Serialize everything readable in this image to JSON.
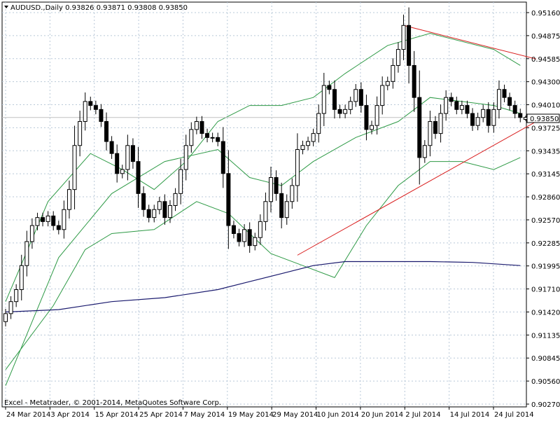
{
  "header": {
    "symbol_line": "AUDUSD.,Daily  0.93826 0.93871 0.93808 0.93850",
    "copyright": "Excel - Metatrader, © 2001-2014, MetaQuotes Software Corp."
  },
  "chart_data": {
    "type": "candlestick",
    "symbol": "AUDUSD.",
    "timeframe": "Daily",
    "last_ohlc": {
      "open": 0.93826,
      "high": 0.93871,
      "low": 0.93808,
      "close": 0.9385
    },
    "current_price_label": "0.93850",
    "ylim": [
      0.9027,
      0.9516
    ],
    "grid": true,
    "y_ticks": [
      "0.95160",
      "0.94875",
      "0.94585",
      "0.94300",
      "0.94010",
      "0.93725",
      "0.93435",
      "0.93145",
      "0.92860",
      "0.92570",
      "0.92285",
      "0.91995",
      "0.91710",
      "0.91420",
      "0.91135",
      "0.90845",
      "0.90560",
      "0.90270"
    ],
    "x_ticks": [
      "24 Mar 2014",
      "3 Apr 2014",
      "15 Apr 2014",
      "25 Apr 2014",
      "7 May 2014",
      "19 May 2014",
      "29 May 2014",
      "10 Jun 2014",
      "20 Jun 2014",
      "2 Jul 2014",
      "14 Jul 2014",
      "24 Jul 2014"
    ],
    "closes": [
      0.914,
      0.9155,
      0.917,
      0.92,
      0.923,
      0.925,
      0.926,
      0.9255,
      0.9262,
      0.925,
      0.9245,
      0.927,
      0.9295,
      0.935,
      0.938,
      0.9405,
      0.94,
      0.9395,
      0.938,
      0.9355,
      0.934,
      0.9315,
      0.932,
      0.935,
      0.933,
      0.929,
      0.927,
      0.926,
      0.927,
      0.928,
      0.926,
      0.9275,
      0.929,
      0.932,
      0.935,
      0.937,
      0.938,
      0.9365,
      0.936,
      0.936,
      0.9355,
      0.9315,
      0.925,
      0.924,
      0.923,
      0.9245,
      0.9225,
      0.9235,
      0.9255,
      0.928,
      0.931,
      0.929,
      0.926,
      0.928,
      0.93,
      0.9345,
      0.935,
      0.9355,
      0.9365,
      0.939,
      0.9425,
      0.942,
      0.9395,
      0.939,
      0.9395,
      0.9405,
      0.942,
      0.94,
      0.937,
      0.9375,
      0.94,
      0.9425,
      0.943,
      0.945,
      0.947,
      0.95,
      0.945,
      0.941,
      0.9335,
      0.935,
      0.938,
      0.9365,
      0.939,
      0.941,
      0.9405,
      0.9395,
      0.94,
      0.939,
      0.9375,
      0.9385,
      0.9395,
      0.9375,
      0.9395,
      0.942,
      0.941,
      0.94,
      0.939,
      0.9385
    ],
    "indicators": {
      "bollinger_upper": [
        [
          0,
          0.9155
        ],
        [
          8,
          0.928
        ],
        [
          16,
          0.934
        ],
        [
          22,
          0.932
        ],
        [
          28,
          0.9295
        ],
        [
          34,
          0.933
        ],
        [
          40,
          0.938
        ],
        [
          46,
          0.94
        ],
        [
          52,
          0.94
        ],
        [
          58,
          0.941
        ],
        [
          64,
          0.944
        ],
        [
          72,
          0.9475
        ],
        [
          80,
          0.949
        ],
        [
          86,
          0.948
        ],
        [
          92,
          0.947
        ],
        [
          97,
          0.945
        ]
      ],
      "bollinger_middle": [
        [
          0,
          0.905
        ],
        [
          10,
          0.921
        ],
        [
          20,
          0.929
        ],
        [
          30,
          0.933
        ],
        [
          40,
          0.9345
        ],
        [
          46,
          0.931
        ],
        [
          52,
          0.93
        ],
        [
          58,
          0.933
        ],
        [
          66,
          0.936
        ],
        [
          74,
          0.938
        ],
        [
          80,
          0.941
        ],
        [
          86,
          0.9405
        ],
        [
          92,
          0.94
        ],
        [
          97,
          0.939
        ]
      ],
      "bollinger_lower": [
        [
          0,
          0.907
        ],
        [
          9,
          0.915
        ],
        [
          15,
          0.922
        ],
        [
          20,
          0.924
        ],
        [
          28,
          0.9245
        ],
        [
          36,
          0.928
        ],
        [
          42,
          0.9265
        ],
        [
          50,
          0.9215
        ],
        [
          56,
          0.92
        ],
        [
          62,
          0.9185
        ],
        [
          68,
          0.925
        ],
        [
          74,
          0.93
        ],
        [
          80,
          0.933
        ],
        [
          86,
          0.933
        ],
        [
          92,
          0.932
        ],
        [
          97,
          0.9335
        ]
      ],
      "moving_average_200": [
        [
          0,
          0.9142
        ],
        [
          10,
          0.9145
        ],
        [
          20,
          0.9155
        ],
        [
          30,
          0.916
        ],
        [
          40,
          0.917
        ],
        [
          46,
          0.918
        ],
        [
          52,
          0.919
        ],
        [
          58,
          0.92
        ],
        [
          64,
          0.9205
        ],
        [
          72,
          0.9205
        ],
        [
          80,
          0.9205
        ],
        [
          88,
          0.9204
        ],
        [
          97,
          0.92
        ]
      ]
    },
    "trendlines": [
      {
        "from": [
          55,
          0.9213
        ],
        "to": [
          100,
          0.938
        ]
      },
      {
        "from": [
          75,
          0.95
        ],
        "to": [
          100,
          0.9458
        ]
      }
    ],
    "colors": {
      "bullish_candle": "#ffffff",
      "bearish_candle": "#000000",
      "candle_outline": "#000000",
      "bollinger": "#2e9a46",
      "moving_average": "#1a1a6e",
      "trendline": "#d91c1c",
      "grid": "#b8c8d8",
      "price_line": "#c0c0c0"
    }
  }
}
